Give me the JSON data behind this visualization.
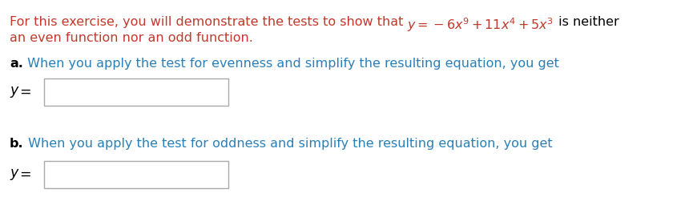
{
  "background_color": "#ffffff",
  "orange": "#c0392b",
  "blue": "#2980b9",
  "black": "#000000",
  "gray_box": "#999999",
  "fig_w": 8.65,
  "fig_h": 2.66,
  "dpi": 100,
  "fs": 11.5,
  "fs_bold": 11.5,
  "line1_plain": "For this exercise, you will demonstrate the tests to show that ",
  "line1_math": "$y = -6x^9 + 11x^4 + 5x^3$",
  "line1_end": " is neither",
  "line2": "an even function nor an odd function.",
  "sec_a_bold": "a.",
  "sec_a_text": " When you apply the test for evenness and simplify the resulting equation, you get",
  "sec_b_bold": "b.",
  "sec_b_text": " When you apply the test for oddness and simplify the resulting equation, you get",
  "y_label": "y",
  "equals": " ="
}
